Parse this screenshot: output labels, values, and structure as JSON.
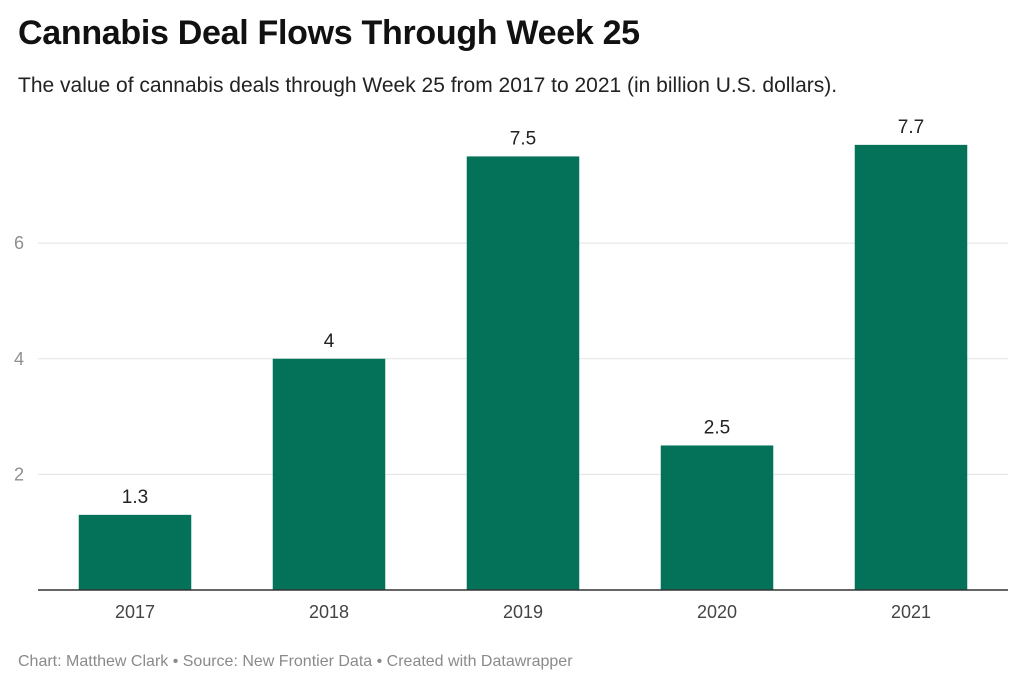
{
  "chart_data": {
    "type": "bar",
    "title": "Cannabis Deal Flows Through Week 25",
    "subtitle": "The value of cannabis deals through Week 25 from 2017 to 2021 (in billion U.S. dollars).",
    "categories": [
      "2017",
      "2018",
      "2019",
      "2020",
      "2021"
    ],
    "values": [
      1.3,
      4,
      7.5,
      2.5,
      7.7
    ],
    "value_labels": [
      "1.3",
      "4",
      "7.5",
      "2.5",
      "7.7"
    ],
    "yticks": [
      2,
      4,
      6
    ],
    "ytick_labels": [
      "2",
      "4",
      "6"
    ],
    "ylim": [
      0,
      8.13
    ],
    "xlabel": "",
    "ylabel": "",
    "grid": true,
    "bar_color": "#037259"
  },
  "footer": "Chart: Matthew Clark • Source: New Frontier Data • Created with Datawrapper"
}
